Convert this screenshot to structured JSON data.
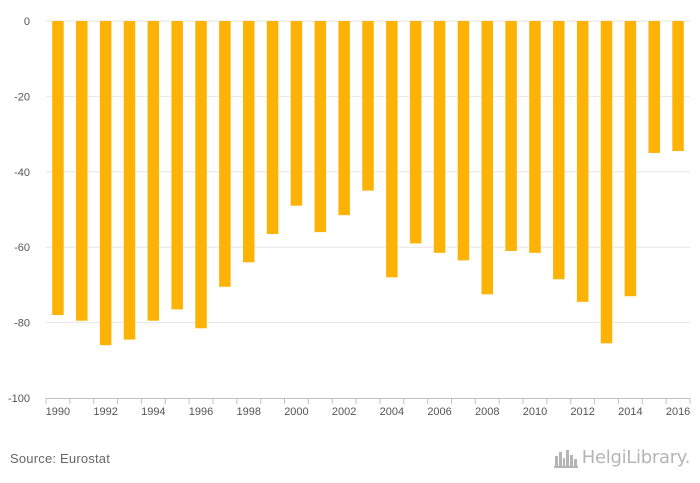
{
  "chart_data": {
    "type": "bar",
    "title": "",
    "xlabel": "",
    "ylabel": "",
    "ylim": [
      -100,
      0
    ],
    "yticks": [
      0,
      -20,
      -40,
      -60,
      -80,
      -100
    ],
    "xtick_labels": [
      "1990",
      "1992",
      "1994",
      "1996",
      "1998",
      "2000",
      "2002",
      "2004",
      "2006",
      "2008",
      "2010",
      "2012",
      "2014",
      "2016"
    ],
    "categories": [
      "1990",
      "1991",
      "1992",
      "1993",
      "1994",
      "1995",
      "1996",
      "1997",
      "1998",
      "1999",
      "2000",
      "2001",
      "2002",
      "2003",
      "2004",
      "2005",
      "2006",
      "2007",
      "2008",
      "2009",
      "2010",
      "2011",
      "2012",
      "2013",
      "2014",
      "2015",
      "2016"
    ],
    "values": [
      -78,
      -79.5,
      -86,
      -84.5,
      -79.5,
      -76.5,
      -81.5,
      -70.5,
      -64,
      -56.5,
      -49,
      -56,
      -51.5,
      -45,
      -68,
      -59,
      -61.5,
      -63.5,
      -72.5,
      -61,
      -61.5,
      -68.5,
      -74.5,
      -85.5,
      -73,
      -35,
      -34.5
    ],
    "bar_color": "#FDB306",
    "grid": true
  },
  "footer": {
    "source": "Source: Eurostat",
    "logo_text": "HelgiLibrary."
  }
}
